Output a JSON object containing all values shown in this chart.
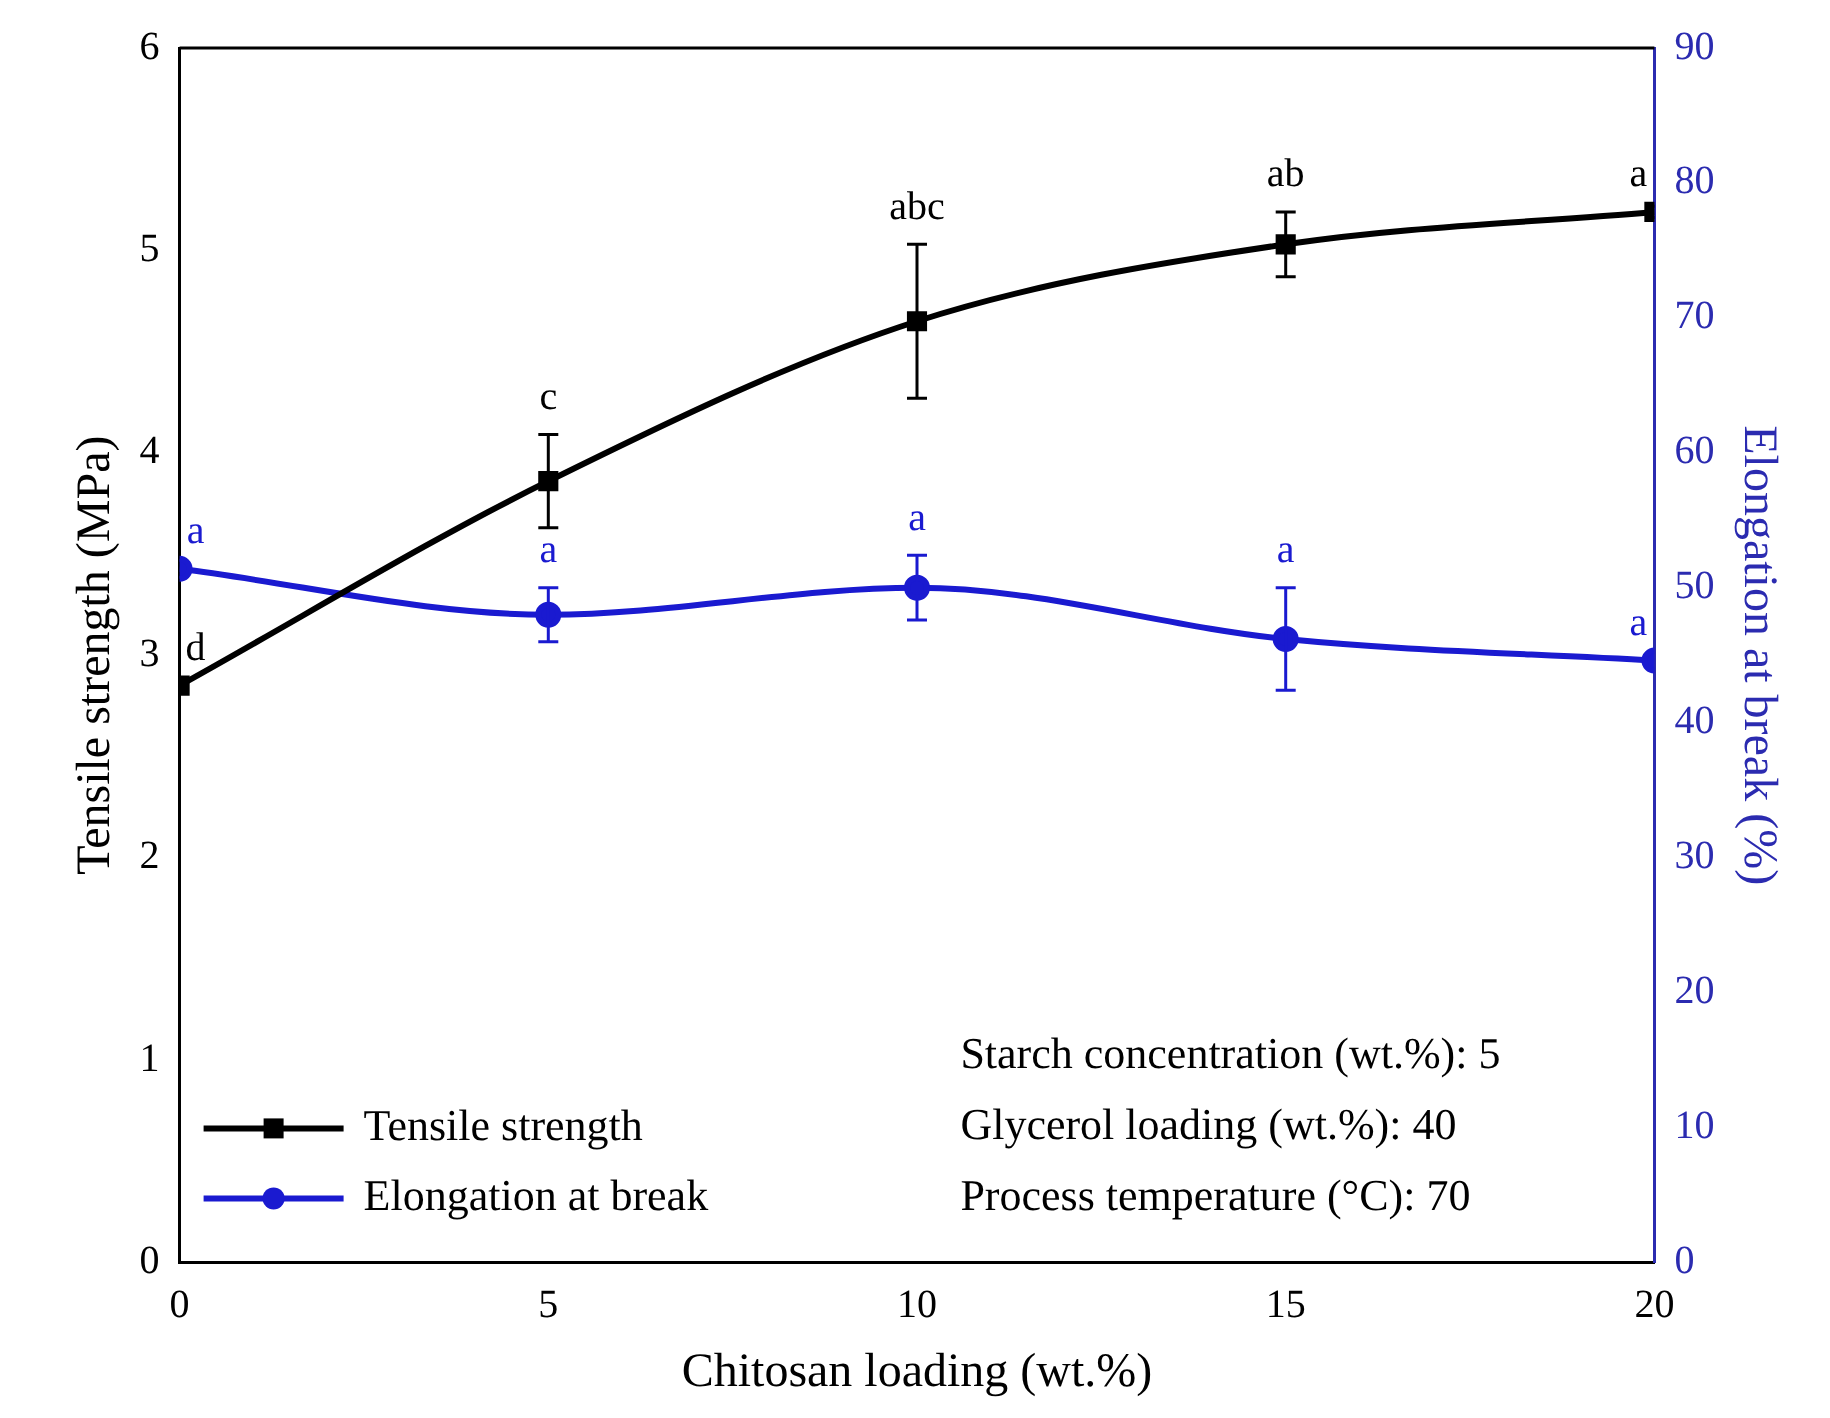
{
  "chart_data": {
    "type": "line",
    "xlabel": "Chitosan loading (wt.%)",
    "ylabel": "Tensile strength (MPa)",
    "y2label": "Elongation at break (%)",
    "x": [
      0,
      5,
      10,
      15,
      20
    ],
    "series": [
      {
        "name": "Tensile strength",
        "color": "#000000",
        "marker": "square",
        "values": [
          2.85,
          3.86,
          4.65,
          5.03,
          5.19
        ],
        "errors": [
          null,
          0.23,
          0.38,
          0.16,
          null
        ],
        "value_labels": [
          "d",
          "c",
          "abc",
          "ab",
          "a"
        ]
      },
      {
        "name": "Elongation at break",
        "color": "#1a1ad0",
        "marker": "circle",
        "axis": "y2",
        "values": [
          51.4,
          48.0,
          50.0,
          46.2,
          44.6
        ],
        "errors": [
          null,
          2.0,
          2.4,
          3.8,
          null
        ],
        "value_labels": [
          "a",
          "a",
          "a",
          "a",
          "a"
        ]
      }
    ],
    "xlim": [
      0,
      20
    ],
    "xticks": [
      0,
      5,
      10,
      15,
      20
    ],
    "ylim": [
      0,
      6
    ],
    "yticks": [
      0,
      1,
      2,
      3,
      4,
      5,
      6
    ],
    "y2lim": [
      0,
      90
    ],
    "y2ticks": [
      0,
      10,
      20,
      30,
      40,
      50,
      60,
      70,
      80,
      90
    ],
    "grid": false,
    "legend": "bottom left",
    "annotations": [
      "Starch concentration (wt.%): 5",
      "Glycerol loading (wt.%): 40",
      "Process temperature (°C): 70"
    ]
  }
}
